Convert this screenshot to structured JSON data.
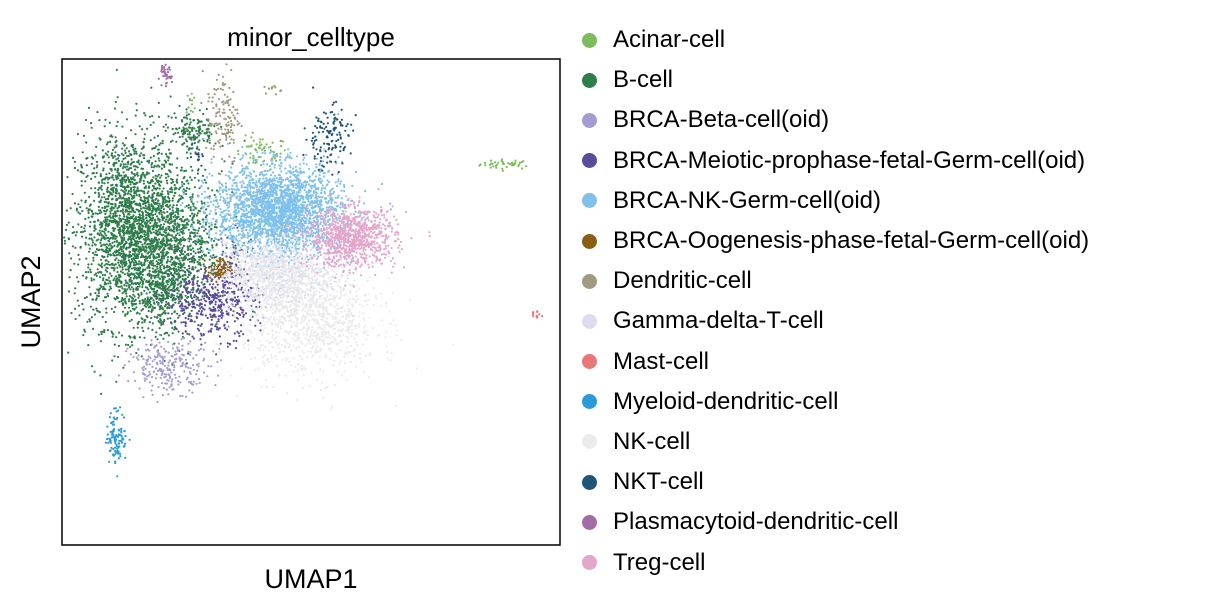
{
  "chart_data": {
    "type": "scatter",
    "title": "minor_celltype",
    "xlabel": "UMAP1",
    "ylabel": "UMAP2",
    "xlim": [
      -10,
      20
    ],
    "ylim": [
      -10,
      20
    ],
    "grid": false,
    "ticks": false,
    "legend_position": "right",
    "series": [
      {
        "name": "Acinar-cell",
        "color": "#7dbb5c",
        "clusters": [
          {
            "x": 16.8,
            "y": 13.5,
            "sx": 0.8,
            "sy": 0.15,
            "n": 40
          },
          {
            "x": 2.0,
            "y": 14.2,
            "sx": 0.8,
            "sy": 0.5,
            "n": 60
          },
          {
            "x": -2.2,
            "y": 17.3,
            "sx": 0.15,
            "sy": 0.4,
            "n": 12
          }
        ]
      },
      {
        "name": "B-cell",
        "color": "#2e7d4b",
        "clusters": [
          {
            "x": -6.0,
            "y": 9.5,
            "sx": 1.6,
            "sy": 3.0,
            "n": 2000
          },
          {
            "x": -3.5,
            "y": 8.5,
            "sx": 1.6,
            "sy": 2.4,
            "n": 1100
          },
          {
            "x": -2.0,
            "y": 15.5,
            "sx": 0.7,
            "sy": 0.6,
            "n": 140
          },
          {
            "x": -4.0,
            "y": 5.5,
            "sx": 0.6,
            "sy": 1.0,
            "n": 180
          }
        ]
      },
      {
        "name": "BRCA-Beta-cell(oid)",
        "color": "#a59dd1",
        "clusters": [
          {
            "x": -3.5,
            "y": 1.0,
            "sx": 1.2,
            "sy": 0.8,
            "n": 240
          }
        ]
      },
      {
        "name": "BRCA-Meiotic-prophase-fetal-Germ-cell(oid)",
        "color": "#5a4c9b",
        "clusters": [
          {
            "x": -1.0,
            "y": 5.0,
            "sx": 1.4,
            "sy": 1.1,
            "n": 430
          },
          {
            "x": 0.5,
            "y": 7.5,
            "sx": 0.6,
            "sy": 1.0,
            "n": 60
          }
        ]
      },
      {
        "name": "BRCA-NK-Germ-cell(oid)",
        "color": "#7fc1eb",
        "clusters": [
          {
            "x": 3.0,
            "y": 10.6,
            "sx": 1.9,
            "sy": 1.4,
            "n": 2500
          }
        ]
      },
      {
        "name": "BRCA-Oogenesis-phase-fetal-Germ-cell(oid)",
        "color": "#8b5e17",
        "clusters": [
          {
            "x": -0.5,
            "y": 7.0,
            "sx": 0.35,
            "sy": 0.35,
            "n": 90
          }
        ]
      },
      {
        "name": "Dendritic-cell",
        "color": "#a09a82",
        "clusters": [
          {
            "x": -0.3,
            "y": 16.5,
            "sx": 0.5,
            "sy": 1.5,
            "n": 130
          },
          {
            "x": 2.8,
            "y": 18.2,
            "sx": 0.3,
            "sy": 0.15,
            "n": 12
          }
        ]
      },
      {
        "name": "Gamma-delta-T-cell",
        "color": "#dddcee",
        "clusters": [
          {
            "x": 3.0,
            "y": 6.5,
            "sx": 1.6,
            "sy": 1.1,
            "n": 600
          }
        ]
      },
      {
        "name": "Mast-cell",
        "color": "#e87777",
        "clusters": [
          {
            "x": 18.6,
            "y": 4.2,
            "sx": 0.15,
            "sy": 0.15,
            "n": 12
          }
        ]
      },
      {
        "name": "Myeloid-dendritic-cell",
        "color": "#2b9ad8",
        "clusters": [
          {
            "x": -6.7,
            "y": -3.3,
            "sx": 0.3,
            "sy": 0.8,
            "n": 110
          }
        ]
      },
      {
        "name": "NK-cell",
        "color": "#ebebeb",
        "clusters": [
          {
            "x": 5.0,
            "y": 4.0,
            "sx": 2.0,
            "sy": 1.8,
            "n": 1000
          },
          {
            "x": 2.5,
            "y": 7.0,
            "sx": 1.5,
            "sy": 1.0,
            "n": 500
          }
        ]
      },
      {
        "name": "NKT-cell",
        "color": "#1f5579",
        "clusters": [
          {
            "x": 6.0,
            "y": 15.2,
            "sx": 0.7,
            "sy": 1.0,
            "n": 130
          },
          {
            "x": -1.8,
            "y": 14.0,
            "sx": 0.25,
            "sy": 0.25,
            "n": 15
          }
        ]
      },
      {
        "name": "Plasmacytoid-dendritic-cell",
        "color": "#a46ca6",
        "clusters": [
          {
            "x": -3.8,
            "y": 19.0,
            "sx": 0.2,
            "sy": 0.35,
            "n": 40
          }
        ]
      },
      {
        "name": "Treg-cell",
        "color": "#e2a7cb",
        "clusters": [
          {
            "x": 7.5,
            "y": 9.0,
            "sx": 1.3,
            "sy": 0.9,
            "n": 900
          }
        ]
      }
    ]
  }
}
